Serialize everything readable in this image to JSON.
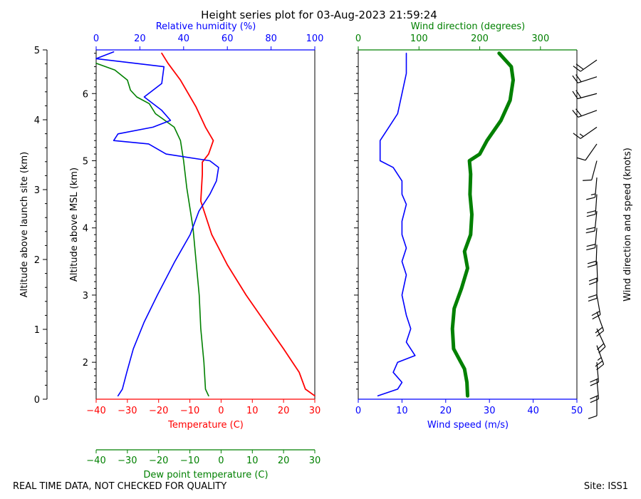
{
  "title": "Height series plot for 03-Aug-2023 21:59:24",
  "footer_left": "REAL TIME DATA, NOT CHECKED FOR QUALITY",
  "footer_right": "Site: ISS1",
  "colors": {
    "temperature": "#ff0000",
    "dewpoint": "#008000",
    "humidity": "#0000ff",
    "wind_speed": "#0000ff",
    "wind_direction": "#008000",
    "barbs": "#000000"
  },
  "chart_data": [
    {
      "type": "line",
      "panel": "thermodynamic",
      "xlabel_top": "Relative humidity (%)",
      "xlabel_bottom": "Temperature (C)",
      "xlabel_bottom2": "Dew point temperature (C)",
      "ylabel_left": "Altitude above launch site (km)",
      "ylabel_right": "Altitude above MSL (km)",
      "temp_ticks": [
        "−40",
        "−30",
        "−20",
        "−10",
        "0",
        "10",
        "20",
        "30"
      ],
      "rh_ticks": [
        "0",
        "20",
        "40",
        "60",
        "80",
        "100"
      ],
      "agl_ticks": [
        "0",
        "1",
        "2",
        "3",
        "4",
        "5"
      ],
      "msl_ticks": [
        "2",
        "3",
        "4",
        "5",
        "6"
      ],
      "xlim_temperature": [
        -40,
        30
      ],
      "xlim_humidity": [
        0,
        100
      ],
      "ylim_msl_km": [
        1.45,
        6.65
      ],
      "series": [
        {
          "name": "Temperature",
          "axis": "temperature",
          "points": [
            [
              30,
              1.5
            ],
            [
              27,
              1.6
            ],
            [
              25,
              1.85
            ],
            [
              20,
              2.2
            ],
            [
              14,
              2.6
            ],
            [
              8,
              3.0
            ],
            [
              2,
              3.45
            ],
            [
              -3,
              3.9
            ],
            [
              -6.5,
              4.4
            ],
            [
              -6,
              4.8
            ],
            [
              -6,
              4.98
            ],
            [
              -4,
              5.1
            ],
            [
              -2.5,
              5.3
            ],
            [
              -5,
              5.5
            ],
            [
              -8,
              5.8
            ],
            [
              -13,
              6.2
            ],
            [
              -17,
              6.45
            ],
            [
              -19,
              6.6
            ]
          ]
        },
        {
          "name": "Dew point",
          "axis": "temperature",
          "points": [
            [
              -4,
              1.5
            ],
            [
              -5,
              1.6
            ],
            [
              -5.5,
              2.0
            ],
            [
              -6.5,
              2.5
            ],
            [
              -7,
              3.0
            ],
            [
              -8,
              3.5
            ],
            [
              -9,
              4.0
            ],
            [
              -10,
              4.3
            ],
            [
              -11,
              4.6
            ],
            [
              -11.5,
              4.8
            ],
            [
              -12,
              5.0
            ],
            [
              -13,
              5.3
            ],
            [
              -15,
              5.5
            ],
            [
              -18,
              5.6
            ],
            [
              -21,
              5.7
            ],
            [
              -23,
              5.85
            ],
            [
              -27,
              5.95
            ],
            [
              -29,
              6.05
            ],
            [
              -30,
              6.2
            ],
            [
              -34,
              6.35
            ],
            [
              -40,
              6.45
            ]
          ]
        },
        {
          "name": "Relative humidity",
          "axis": "humidity",
          "points": [
            [
              10,
              1.5
            ],
            [
              12,
              1.6
            ],
            [
              14,
              1.85
            ],
            [
              17,
              2.2
            ],
            [
              22,
              2.6
            ],
            [
              28,
              3.0
            ],
            [
              36,
              3.5
            ],
            [
              43,
              3.9
            ],
            [
              47,
              4.25
            ],
            [
              52,
              4.5
            ],
            [
              55,
              4.7
            ],
            [
              56,
              4.9
            ],
            [
              52,
              5.0
            ],
            [
              32,
              5.1
            ],
            [
              24,
              5.25
            ],
            [
              8,
              5.3
            ],
            [
              10,
              5.4
            ],
            [
              26,
              5.5
            ],
            [
              34,
              5.6
            ],
            [
              30,
              5.75
            ],
            [
              22,
              5.95
            ],
            [
              30,
              6.15
            ],
            [
              31,
              6.4
            ],
            [
              0,
              6.52
            ],
            [
              8,
              6.62
            ]
          ]
        }
      ]
    },
    {
      "type": "line",
      "panel": "wind",
      "xlabel_bottom": "Wind speed (m/s)",
      "xlabel_top": "Wind direction (degrees)",
      "ylabel_right": "Wind direction and speed (knots)",
      "speed_ticks": [
        "0",
        "10",
        "20",
        "30",
        "40",
        "50"
      ],
      "direction_ticks": [
        "0",
        "100",
        "200",
        "300"
      ],
      "xlim_speed": [
        0,
        50
      ],
      "xlim_direction": [
        0,
        360
      ],
      "series": [
        {
          "name": "Wind speed",
          "axis": "speed",
          "points": [
            [
              4.5,
              1.5
            ],
            [
              9,
              1.6
            ],
            [
              10,
              1.7
            ],
            [
              8,
              1.85
            ],
            [
              9,
              2.0
            ],
            [
              13,
              2.1
            ],
            [
              11,
              2.3
            ],
            [
              12,
              2.5
            ],
            [
              11,
              2.7
            ],
            [
              10,
              3.0
            ],
            [
              11,
              3.3
            ],
            [
              10,
              3.5
            ],
            [
              11,
              3.7
            ],
            [
              10,
              3.9
            ],
            [
              10,
              4.1
            ],
            [
              11,
              4.35
            ],
            [
              10,
              4.5
            ],
            [
              10,
              4.7
            ],
            [
              8,
              4.9
            ],
            [
              5,
              5.0
            ],
            [
              5,
              5.3
            ],
            [
              7,
              5.5
            ],
            [
              9,
              5.7
            ],
            [
              10,
              6.0
            ],
            [
              11,
              6.3
            ],
            [
              11,
              6.6
            ]
          ]
        },
        {
          "name": "Wind direction",
          "axis": "direction",
          "points": [
            [
              180,
              1.5
            ],
            [
              179,
              1.7
            ],
            [
              175,
              1.9
            ],
            [
              157,
              2.2
            ],
            [
              155,
              2.5
            ],
            [
              158,
              2.8
            ],
            [
              170,
              3.1
            ],
            [
              180,
              3.4
            ],
            [
              175,
              3.65
            ],
            [
              185,
              3.9
            ],
            [
              187,
              4.2
            ],
            [
              184,
              4.5
            ],
            [
              185,
              4.8
            ],
            [
              183,
              5.0
            ],
            [
              200,
              5.1
            ],
            [
              212,
              5.3
            ],
            [
              235,
              5.6
            ],
            [
              250,
              5.9
            ],
            [
              255,
              6.2
            ],
            [
              252,
              6.4
            ],
            [
              232,
              6.6
            ]
          ]
        }
      ],
      "barbs_knots": [
        {
          "alt_km": 1.5,
          "speed_kt": 10,
          "dir_deg": 180
        },
        {
          "alt_km": 1.75,
          "speed_kt": 20,
          "dir_deg": 175
        },
        {
          "alt_km": 2.0,
          "speed_kt": 20,
          "dir_deg": 175
        },
        {
          "alt_km": 2.25,
          "speed_kt": 25,
          "dir_deg": 160
        },
        {
          "alt_km": 2.5,
          "speed_kt": 20,
          "dir_deg": 155
        },
        {
          "alt_km": 2.75,
          "speed_kt": 20,
          "dir_deg": 160
        },
        {
          "alt_km": 3.0,
          "speed_kt": 20,
          "dir_deg": 170
        },
        {
          "alt_km": 3.25,
          "speed_kt": 20,
          "dir_deg": 180
        },
        {
          "alt_km": 3.5,
          "speed_kt": 20,
          "dir_deg": 178
        },
        {
          "alt_km": 3.75,
          "speed_kt": 20,
          "dir_deg": 182
        },
        {
          "alt_km": 4.0,
          "speed_kt": 20,
          "dir_deg": 185
        },
        {
          "alt_km": 4.25,
          "speed_kt": 20,
          "dir_deg": 186
        },
        {
          "alt_km": 4.5,
          "speed_kt": 20,
          "dir_deg": 184
        },
        {
          "alt_km": 4.75,
          "speed_kt": 15,
          "dir_deg": 185
        },
        {
          "alt_km": 5.0,
          "speed_kt": 10,
          "dir_deg": 195
        },
        {
          "alt_km": 5.25,
          "speed_kt": 10,
          "dir_deg": 215
        },
        {
          "alt_km": 5.5,
          "speed_kt": 15,
          "dir_deg": 235
        },
        {
          "alt_km": 5.75,
          "speed_kt": 20,
          "dir_deg": 250
        },
        {
          "alt_km": 6.0,
          "speed_kt": 20,
          "dir_deg": 255
        },
        {
          "alt_km": 6.25,
          "speed_kt": 20,
          "dir_deg": 252
        },
        {
          "alt_km": 6.5,
          "speed_kt": 20,
          "dir_deg": 235
        }
      ]
    }
  ]
}
